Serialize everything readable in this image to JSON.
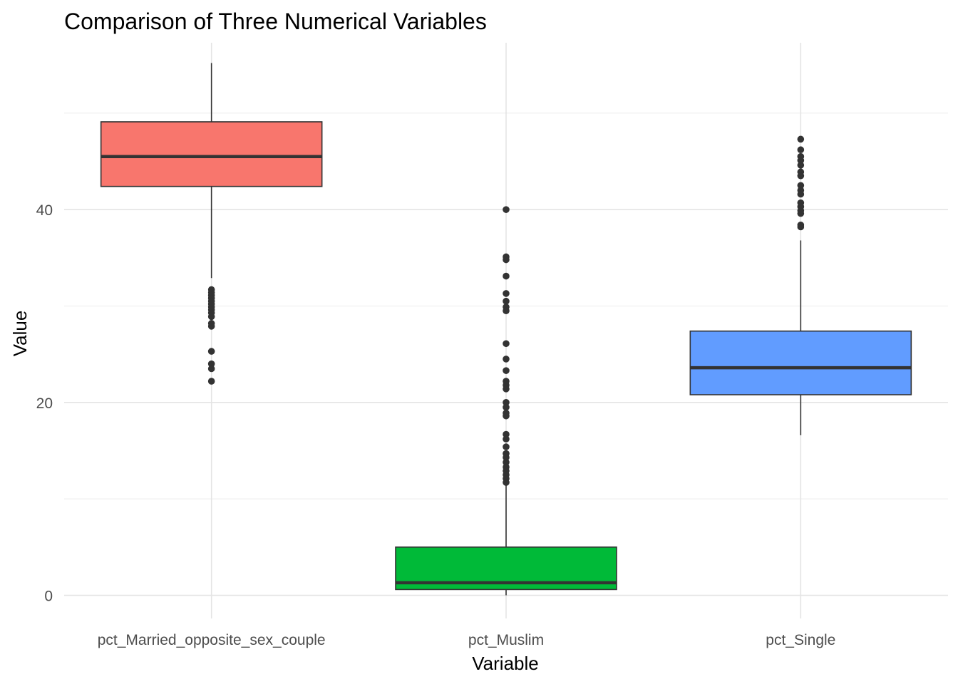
{
  "chart_data": {
    "type": "boxplot",
    "title": "Comparison of Three Numerical Variables",
    "xlabel": "Variable",
    "ylabel": "Value",
    "ylim": [
      -2.4,
      57.3
    ],
    "y_ticks": [
      0,
      20,
      40
    ],
    "y_tick_labels": [
      "0",
      "20",
      "40"
    ],
    "grid": true,
    "legend": "none",
    "categories": [
      "pct_Married_opposite_sex_couple",
      "pct_Muslim",
      "pct_Single"
    ],
    "boxes": [
      {
        "name": "pct_Married_opposite_sex_couple",
        "color": "#F8766D",
        "whisker_low": 32.9,
        "q1": 42.4,
        "median": 45.5,
        "q3": 49.1,
        "whisker_high": 55.2,
        "outliers": [
          31.7,
          31.4,
          31.1,
          30.8,
          30.5,
          30.2,
          29.9,
          29.6,
          29.3,
          28.9,
          28.2,
          27.9,
          25.3,
          24.0,
          23.5,
          22.2
        ]
      },
      {
        "name": "pct_Muslim",
        "color": "#00BA38",
        "whisker_low": 0.0,
        "q1": 0.6,
        "median": 1.3,
        "q3": 5.0,
        "whisker_high": 11.5,
        "outliers": [
          40.0,
          35.1,
          34.8,
          33.1,
          31.3,
          30.5,
          29.9,
          29.5,
          26.1,
          24.5,
          23.3,
          22.2,
          21.8,
          21.4,
          20.0,
          19.5,
          18.9,
          18.6,
          16.7,
          16.2,
          15.4,
          14.7,
          14.3,
          13.8,
          13.3,
          12.9,
          12.5,
          12.1,
          11.7
        ]
      },
      {
        "name": "pct_Single",
        "color": "#619CFF",
        "whisker_low": 16.6,
        "q1": 20.8,
        "median": 23.6,
        "q3": 27.4,
        "whisker_high": 36.8,
        "outliers": [
          47.3,
          46.2,
          45.5,
          45.1,
          44.6,
          43.9,
          43.5,
          42.5,
          42.0,
          41.6,
          40.7,
          40.3,
          39.9,
          39.6,
          38.4,
          38.2
        ]
      }
    ]
  }
}
